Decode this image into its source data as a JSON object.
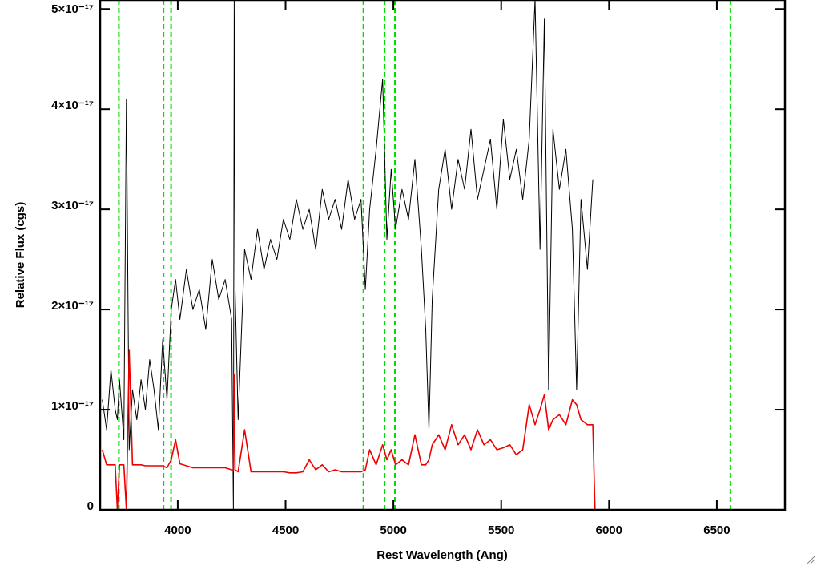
{
  "chart_data": {
    "type": "line",
    "x_label": "Rest Wavelength (Ang)",
    "y_label": "Relative Flux (cgs)",
    "x": [
      3650,
      3670,
      3690,
      3710,
      3720,
      3730,
      3750,
      3762,
      3775,
      3790,
      3810,
      3830,
      3850,
      3870,
      3890,
      3910,
      3930,
      3950,
      3970,
      3990,
      4010,
      4040,
      4070,
      4100,
      4130,
      4160,
      4190,
      4220,
      4250,
      4258,
      4262,
      4266,
      4280,
      4310,
      4340,
      4370,
      4400,
      4430,
      4460,
      4490,
      4520,
      4550,
      4580,
      4610,
      4640,
      4670,
      4700,
      4730,
      4760,
      4790,
      4820,
      4850,
      4870,
      4890,
      4920,
      4950,
      4970,
      4990,
      5010,
      5040,
      5070,
      5100,
      5130,
      5150,
      5165,
      5180,
      5210,
      5240,
      5270,
      5300,
      5330,
      5360,
      5390,
      5420,
      5450,
      5480,
      5510,
      5540,
      5570,
      5600,
      5630,
      5657,
      5680,
      5700,
      5720,
      5740,
      5770,
      5800,
      5830,
      5850,
      5870,
      5900,
      5925,
      5935,
      6200,
      6500,
      6816
    ],
    "series": [
      {
        "color": "#000000",
        "values": [
          1.1e-17,
          8e-18,
          1.4e-17,
          1e-17,
          9e-18,
          1.3e-17,
          7e-18,
          4.1e-17,
          6e-18,
          1.2e-17,
          9e-18,
          1.3e-17,
          1e-17,
          1.5e-17,
          1.2e-17,
          8e-18,
          1.7e-17,
          1.1e-17,
          2e-17,
          2.3e-17,
          1.9e-17,
          2.4e-17,
          2e-17,
          2.2e-17,
          1.8e-17,
          2.5e-17,
          2.1e-17,
          2.3e-17,
          1.9e-17,
          0,
          5.1e-17,
          2.2e-17,
          9e-18,
          2.6e-17,
          2.3e-17,
          2.8e-17,
          2.4e-17,
          2.7e-17,
          2.5e-17,
          2.9e-17,
          2.7e-17,
          3.1e-17,
          2.8e-17,
          3e-17,
          2.6e-17,
          3.2e-17,
          2.9e-17,
          3.1e-17,
          2.8e-17,
          3.3e-17,
          2.9e-17,
          3.1e-17,
          2.2e-17,
          3e-17,
          3.6e-17,
          4.3e-17,
          2.7e-17,
          3.4e-17,
          2.8e-17,
          3.2e-17,
          2.9e-17,
          3.5e-17,
          2.6e-17,
          1.8e-17,
          8e-18,
          2.1e-17,
          3.2e-17,
          3.6e-17,
          3e-17,
          3.5e-17,
          3.2e-17,
          3.8e-17,
          3.1e-17,
          3.4e-17,
          3.7e-17,
          3e-17,
          3.9e-17,
          3.3e-17,
          3.6e-17,
          3.1e-17,
          3.7e-17,
          5.1e-17,
          2.6e-17,
          4.9e-17,
          1.2e-17,
          3.8e-17,
          3.2e-17,
          3.6e-17,
          2.8e-17,
          1.2e-17,
          3.1e-17,
          2.4e-17,
          3.3e-17,
          null,
          null,
          null,
          null
        ]
      },
      {
        "color": "#ee0000",
        "values": [
          6e-18,
          4.5e-18,
          4.5e-18,
          4.5e-18,
          0,
          4.5e-18,
          4.5e-18,
          0,
          1.6e-17,
          4.5e-18,
          4.5e-18,
          4.5e-18,
          4.4e-18,
          4.4e-18,
          4.4e-18,
          4.4e-18,
          4.4e-18,
          4.2e-18,
          5e-18,
          7e-18,
          4.6e-18,
          4.4e-18,
          4.2e-18,
          4.2e-18,
          4.2e-18,
          4.2e-18,
          4.2e-18,
          4.2e-18,
          4e-18,
          4e-18,
          1.35e-17,
          4e-18,
          3.8e-18,
          8e-18,
          3.8e-18,
          3.8e-18,
          3.8e-18,
          3.8e-18,
          3.8e-18,
          3.8e-18,
          3.7e-18,
          3.7e-18,
          3.8e-18,
          5e-18,
          4e-18,
          4.5e-18,
          3.8e-18,
          4e-18,
          3.8e-18,
          3.8e-18,
          3.8e-18,
          3.8e-18,
          4e-18,
          6e-18,
          4.5e-18,
          6.5e-18,
          5e-18,
          6e-18,
          4.5e-18,
          5e-18,
          4.5e-18,
          7.5e-18,
          4.5e-18,
          4.5e-18,
          5e-18,
          6.5e-18,
          7.5e-18,
          6e-18,
          8.5e-18,
          6.5e-18,
          7.5e-18,
          6e-18,
          8e-18,
          6.5e-18,
          7e-18,
          6e-18,
          6.2e-18,
          6.5e-18,
          5.5e-18,
          6e-18,
          1.05e-17,
          8.5e-18,
          1e-17,
          1.15e-17,
          8e-18,
          9e-18,
          9.5e-18,
          8.5e-18,
          1.1e-17,
          1.05e-17,
          9e-18,
          8.5e-18,
          8.5e-18,
          0,
          0,
          0,
          0
        ]
      }
    ],
    "vlines": [
      3727,
      3934,
      3969,
      4861,
      4959,
      5007,
      6563
    ],
    "vline_color": "#00dd00",
    "xlim": [
      3640,
      6816
    ],
    "ylim": [
      0,
      5.09e-17
    ],
    "xticks": [
      4000,
      4500,
      5000,
      5500,
      6000,
      6500
    ],
    "yticks": [
      0,
      {
        "value": 1e-17,
        "label": "1×10⁻¹⁷"
      },
      {
        "value": 2e-17,
        "label": "2×10⁻¹⁷"
      },
      {
        "value": 3e-17,
        "label": "3×10⁻¹⁷"
      },
      {
        "value": 4e-17,
        "label": "4×10⁻¹⁷"
      },
      {
        "value": 5e-17,
        "label": "5×10⁻¹⁷"
      }
    ]
  }
}
